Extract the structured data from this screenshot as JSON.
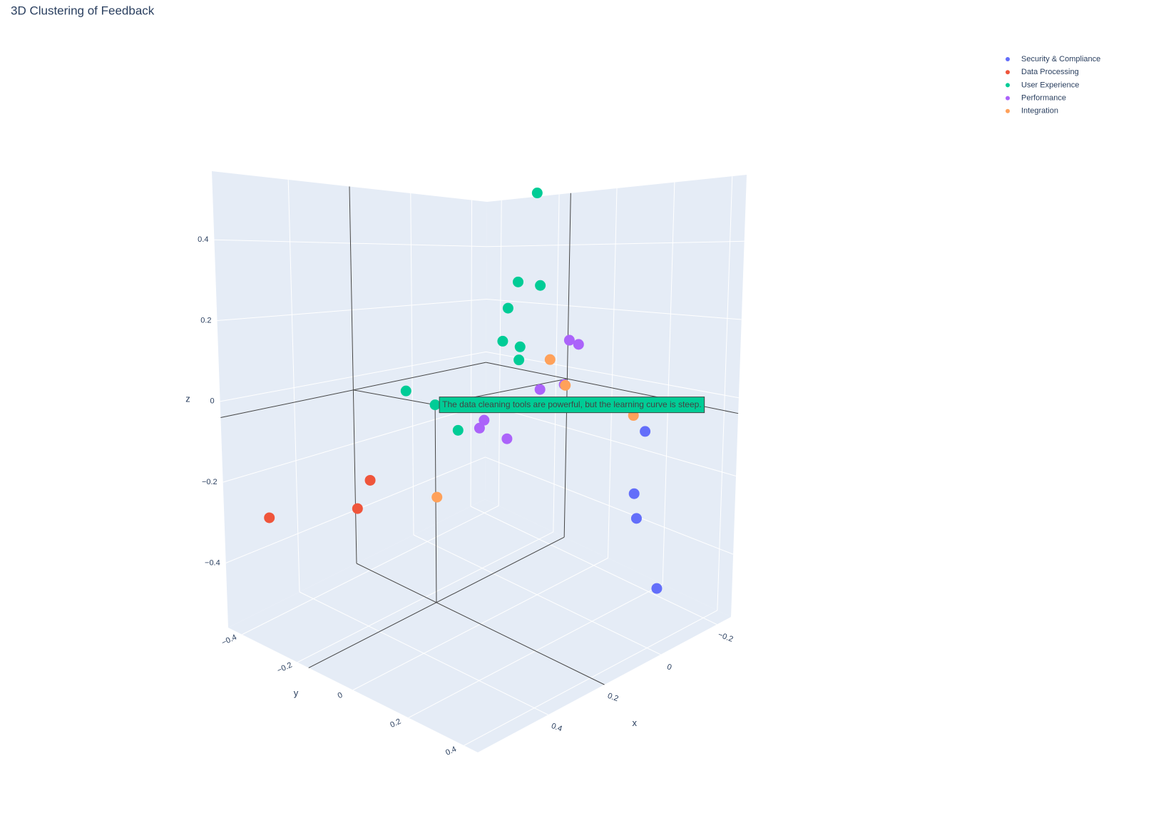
{
  "chart_data": {
    "type": "scatter3d",
    "title": "3D Clustering of Feedback",
    "xaxis_title": "x",
    "yaxis_title": "y",
    "zaxis_title": "z",
    "xlim": [
      -0.25,
      0.65
    ],
    "ylim": [
      -0.45,
      0.45
    ],
    "zlim": [
      -0.56,
      0.57
    ],
    "xticks": [
      {
        "value": -0.2,
        "label": "−0.2"
      },
      0,
      0.2,
      0.4
    ],
    "yticks": [
      {
        "value": -0.4,
        "label": "−0.4"
      },
      {
        "value": -0.2,
        "label": "−0.2"
      },
      0,
      0.2,
      0.4
    ],
    "zticks": [
      {
        "value": -0.4,
        "label": "−0.4"
      },
      {
        "value": -0.2,
        "label": "−0.2"
      },
      0,
      0.2,
      0.4
    ],
    "grid": true,
    "legend": "top-right",
    "series": [
      {
        "name": "Security & Compliance",
        "color": "#636efa",
        "x": [
          -0.088,
          -0.071,
          -0.076,
          -0.115
        ],
        "y": [
          0.288,
          0.271,
          0.276,
          0.315
        ],
        "z": [
          -0.087,
          -0.243,
          -0.305,
          -0.482
        ]
      },
      {
        "name": "Data Processing",
        "color": "#ef553b",
        "x": [
          0.393,
          0.416,
          0.571
        ],
        "y": [
          -0.193,
          -0.216,
          -0.371
        ],
        "z": [
          -0.202,
          -0.271,
          -0.29
        ]
      },
      {
        "name": "User Experience",
        "color": "#00cc96",
        "x": [
          0.016,
          0.047,
          0.009,
          0.064,
          0.073,
          0.043,
          0.04,
          0.241,
          0.2,
          0.151
        ],
        "y": [
          0.005,
          -0.027,
          0.011,
          -0.044,
          -0.053,
          -0.023,
          -0.03,
          -0.22,
          -0.16,
          -0.13
        ],
        "z": [
          0.521,
          0.283,
          0.274,
          0.213,
          0.125,
          0.11,
          0.074,
          -0.005,
          -0.04,
          -0.111
        ],
        "hovertext": [
          null,
          null,
          null,
          null,
          null,
          null,
          null,
          null,
          "The data cleaning tools are powerful, but the learning curve is steep.",
          null
        ]
      },
      {
        "name": "Performance",
        "color": "#ab63fa",
        "x": [
          -0.042,
          -0.058,
          -0.034,
          0.008,
          0.105,
          0.113,
          0.065
        ],
        "y": [
          0.062,
          0.078,
          0.054,
          0.012,
          -0.085,
          -0.093,
          -0.045
        ],
        "z": [
          0.128,
          0.117,
          0.009,
          -0.004,
          -0.085,
          -0.106,
          -0.135
        ]
      },
      {
        "name": "Integration",
        "color": "#ffa15a",
        "x": [
          -0.009,
          -0.036,
          -0.067,
          0.188
        ],
        "y": [
          0.029,
          0.056,
          0.267,
          -0.168
        ],
        "z": [
          0.076,
          0.007,
          -0.047,
          -0.288
        ]
      }
    ]
  }
}
